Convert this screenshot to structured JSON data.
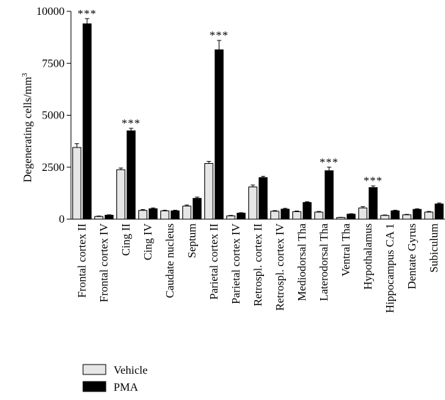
{
  "chart_data": {
    "type": "bar",
    "title": "",
    "xlabel": "",
    "ylabel": "Degenerating cells/mm",
    "ylabel_superscript": "3",
    "ylim": [
      0,
      10000
    ],
    "yticks": [
      0,
      2500,
      5000,
      7500,
      10000
    ],
    "yticks_labels": [
      "0",
      "2500",
      "5000",
      "7500",
      "10000"
    ],
    "grid": false,
    "legend_position": "bottom-left",
    "categories": [
      "Frontal cortex II",
      "Frontal cortex IV",
      "Cing II",
      "Cing IV",
      "Caudate nucleus",
      "Septum",
      "Parietal cortex II",
      "Parietal cortex IV",
      "Retrospl. cortex II",
      "Retrospl. cortex IV",
      "Mediodorsal Tha",
      "Laterodorsal Tha",
      "Ventral Tha",
      "Hypothalamus",
      "Hippocampus CA 1",
      "Dentate Gyrus",
      "Subiculum"
    ],
    "series": [
      {
        "name": "Vehicle",
        "color": "#e6e6e6",
        "values": [
          3450,
          130,
          2380,
          420,
          400,
          630,
          2680,
          160,
          1550,
          380,
          360,
          340,
          80,
          540,
          180,
          210,
          340
        ],
        "errors": [
          180,
          20,
          80,
          40,
          30,
          50,
          100,
          20,
          90,
          30,
          30,
          30,
          10,
          60,
          20,
          20,
          30
        ]
      },
      {
        "name": "PMA",
        "color": "#000000",
        "values": [
          9400,
          190,
          4250,
          500,
          400,
          1000,
          8150,
          290,
          2000,
          480,
          800,
          2330,
          240,
          1520,
          400,
          470,
          730
        ],
        "errors": [
          250,
          20,
          120,
          40,
          30,
          60,
          450,
          20,
          60,
          40,
          40,
          170,
          20,
          80,
          30,
          30,
          50
        ]
      }
    ],
    "annotations": [
      {
        "text": "***",
        "category_index": 0,
        "series": "PMA"
      },
      {
        "text": "***",
        "category_index": 2,
        "series": "PMA"
      },
      {
        "text": "***",
        "category_index": 6,
        "series": "PMA"
      },
      {
        "text": "***",
        "category_index": 11,
        "series": "PMA"
      },
      {
        "text": "***",
        "category_index": 13,
        "series": "PMA"
      }
    ]
  }
}
